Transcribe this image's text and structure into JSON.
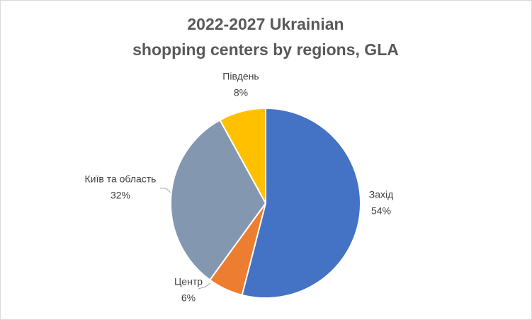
{
  "chart_data": {
    "type": "pie",
    "title": [
      "2022-2027 Ukrainian",
      "shopping centers by regions, GLA"
    ],
    "categories": [
      "Захід",
      "Центр",
      "Київ та область",
      "Південь"
    ],
    "values": [
      54,
      6,
      32,
      8
    ],
    "value_labels": [
      "54%",
      "6%",
      "32%",
      "8%"
    ],
    "colors": [
      "#4472c4",
      "#ed7d31",
      "#8497b0",
      "#ffc000"
    ]
  }
}
